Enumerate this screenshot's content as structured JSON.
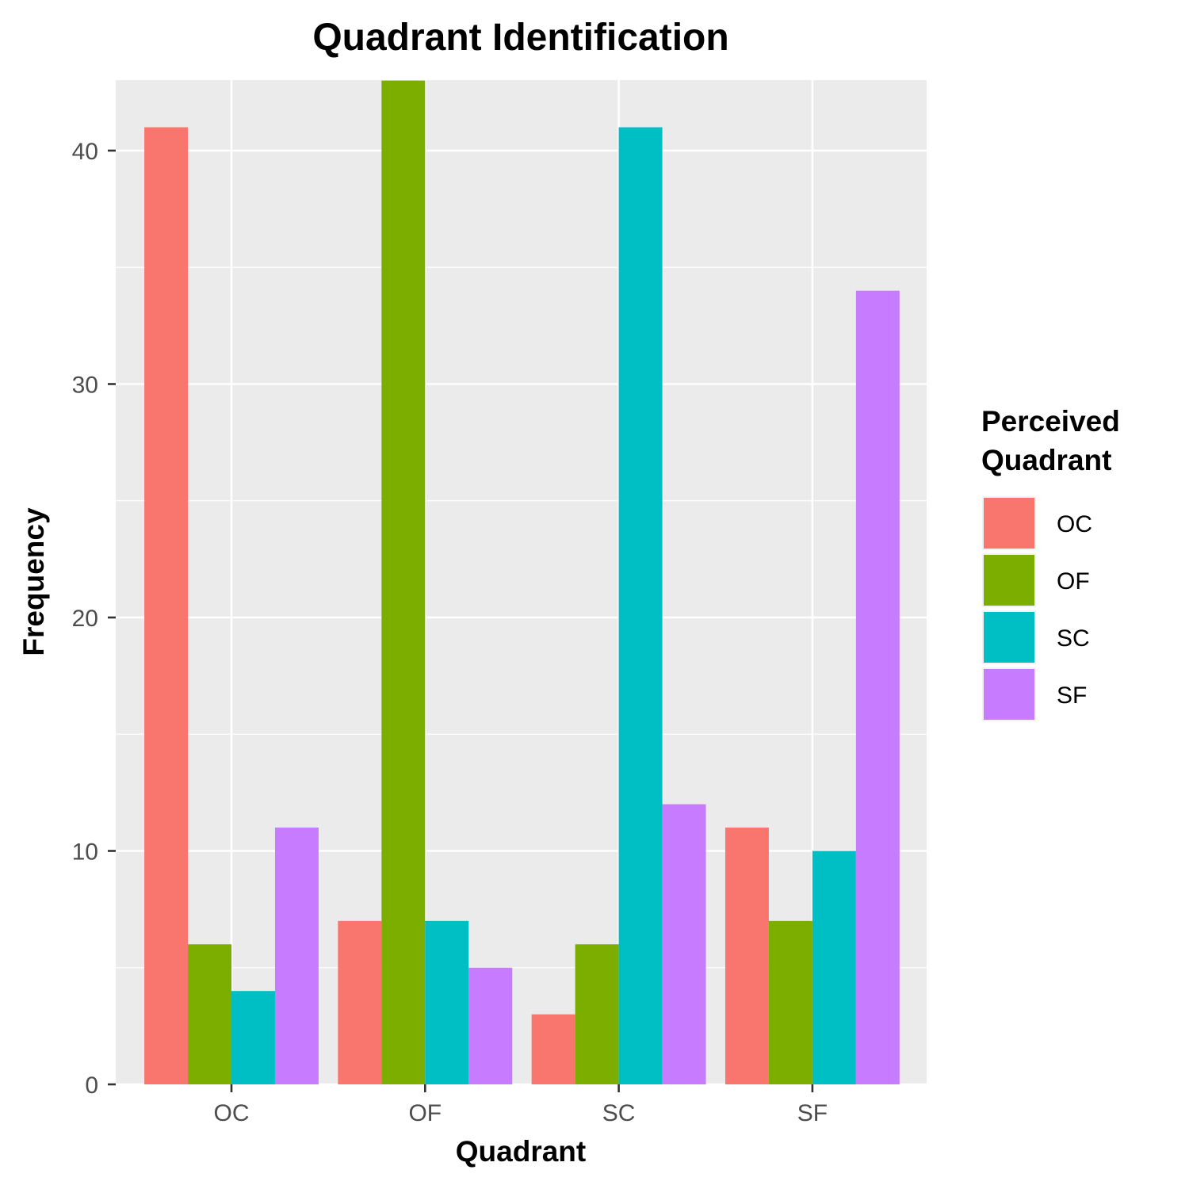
{
  "chart_data": {
    "type": "bar",
    "title": "Quadrant Identification",
    "xlabel": "Quadrant",
    "ylabel": "Frequency",
    "categories": [
      "OC",
      "OF",
      "SC",
      "SF"
    ],
    "series": [
      {
        "name": "OC",
        "color": "#F8766D",
        "values": [
          41,
          7,
          3,
          11
        ]
      },
      {
        "name": "OF",
        "color": "#7CAE00",
        "values": [
          6,
          43,
          6,
          7
        ]
      },
      {
        "name": "SC",
        "color": "#00BFC4",
        "values": [
          4,
          7,
          41,
          10
        ]
      },
      {
        "name": "SF",
        "color": "#C77CFF",
        "values": [
          11,
          5,
          12,
          34
        ]
      }
    ],
    "ylim": [
      0,
      43
    ],
    "yticks": [
      0,
      10,
      20,
      30,
      40
    ],
    "grid": true,
    "legend": {
      "title_lines": [
        "Perceived",
        "Quadrant"
      ],
      "placement": "right"
    },
    "panel_background": "#EBEBEB",
    "grid_color": "#FFFFFF"
  }
}
